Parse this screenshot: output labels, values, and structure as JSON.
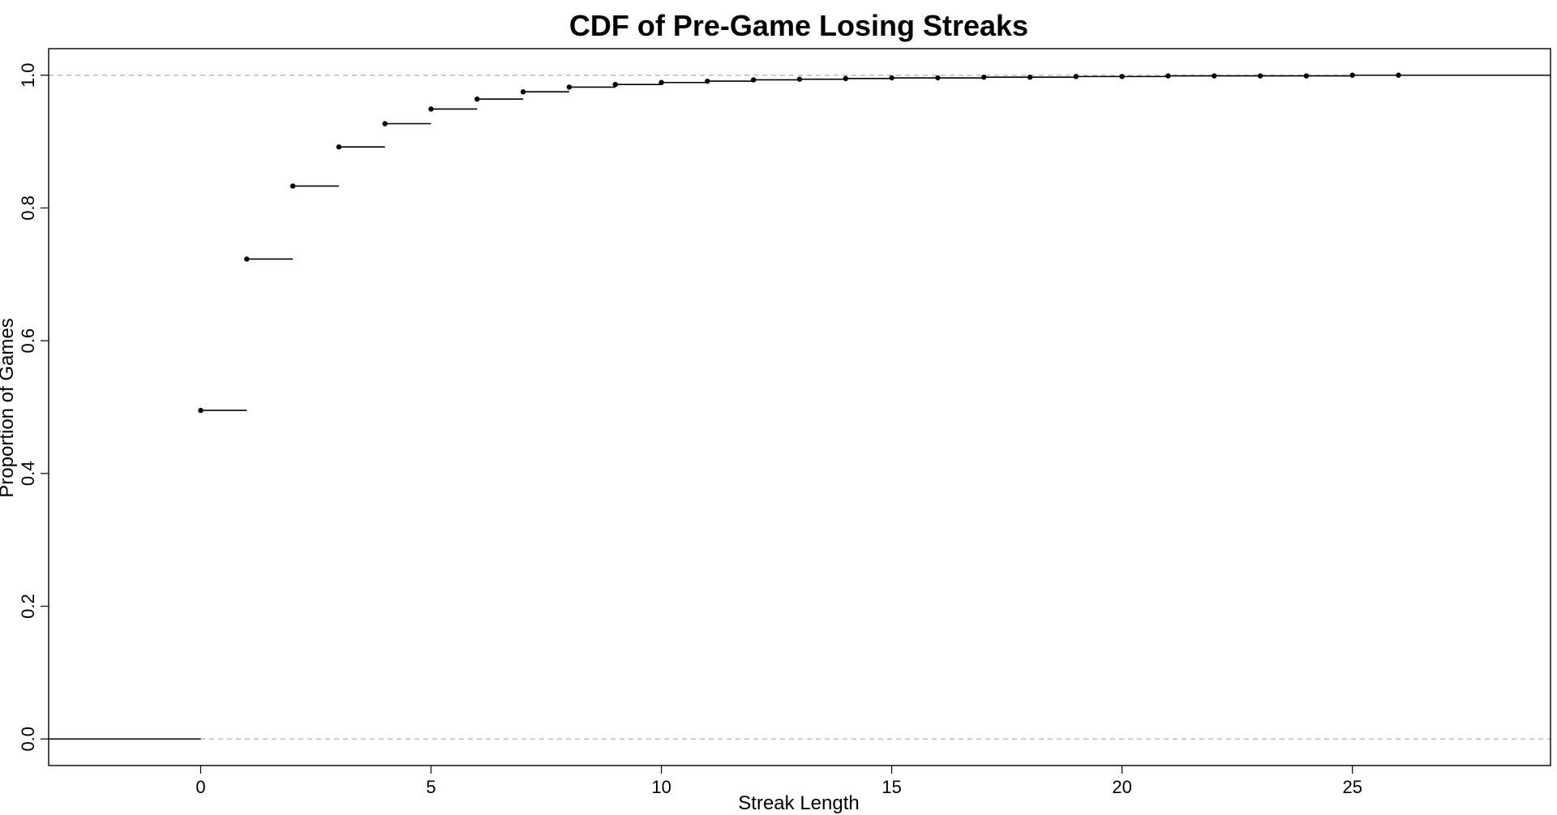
{
  "chart_data": {
    "type": "line",
    "subtype": "step-cdf",
    "title": "CDF of Pre-Game Losing Streaks",
    "xlabel": "Streak Length",
    "ylabel": "Proportion of Games",
    "xlim": [
      -3.3,
      29.3
    ],
    "ylim": [
      -0.04,
      1.04
    ],
    "xticks": [
      "0",
      "5",
      "10",
      "15",
      "20",
      "25"
    ],
    "xtick_values": [
      0,
      5,
      10,
      15,
      20,
      25
    ],
    "yticks": [
      "0.0",
      "0.2",
      "0.4",
      "0.6",
      "0.8",
      "1.0"
    ],
    "ytick_values": [
      0,
      0.2,
      0.4,
      0.6,
      0.8,
      1.0
    ],
    "reference_lines": [
      0,
      1
    ],
    "grid": false,
    "x": [
      0,
      1,
      2,
      3,
      4,
      5,
      6,
      7,
      8,
      9,
      10,
      11,
      12,
      13,
      14,
      15,
      16,
      17,
      18,
      19,
      20,
      21,
      22,
      23,
      24,
      25,
      26
    ],
    "y": [
      0.495,
      0.723,
      0.833,
      0.892,
      0.927,
      0.949,
      0.964,
      0.975,
      0.982,
      0.986,
      0.989,
      0.991,
      0.993,
      0.994,
      0.995,
      0.996,
      0.996,
      0.997,
      0.997,
      0.998,
      0.998,
      0.999,
      0.999,
      0.999,
      0.999,
      1.0,
      1.0
    ],
    "colors": {
      "line": "#000000",
      "reference": "#bbbbbb",
      "frame": "#000000"
    }
  }
}
